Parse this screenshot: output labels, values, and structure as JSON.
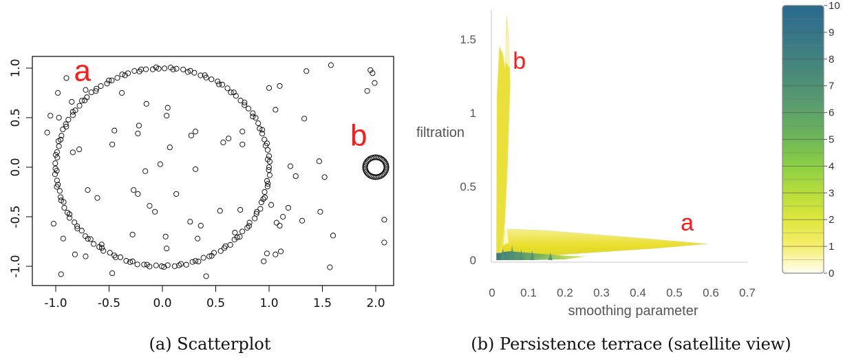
{
  "chart_data": [
    {
      "type": "scatter",
      "caption": "(a) Scatterplot",
      "xlim": [
        -1.2,
        2.2
      ],
      "ylim": [
        -1.15,
        1.1
      ],
      "x_ticks": [
        -1.0,
        -0.5,
        0.0,
        0.5,
        1.0,
        1.5,
        2.0
      ],
      "x_tick_labels": [
        "-1.0",
        "-0.5",
        "0.0",
        "0.5",
        "1.0",
        "1.5",
        "2.0"
      ],
      "y_ticks": [
        -1.0,
        -0.5,
        0.0,
        0.5,
        1.0
      ],
      "y_tick_labels": [
        "-1.0",
        "-0.5",
        "0.0",
        "0.5",
        "1.0"
      ],
      "annotations": [
        {
          "text": "a",
          "x": -0.75,
          "y": 0.87
        },
        {
          "text": "b",
          "x": 1.84,
          "y": 0.22
        }
      ],
      "structure": {
        "large_circle": {
          "center": [
            0,
            0
          ],
          "radius": 1.0
        },
        "small_circle": {
          "center": [
            2.0,
            0.0
          ],
          "radius": 0.1
        }
      },
      "points": [
        [
          -1.08,
          0.35
        ],
        [
          -1.05,
          0.52
        ],
        [
          -0.98,
          0.75
        ],
        [
          -0.9,
          0.9
        ],
        [
          -0.85,
          0.66
        ],
        [
          -0.78,
          0.18
        ],
        [
          -0.84,
          0.15
        ],
        [
          -0.72,
          0.78
        ],
        [
          -0.47,
          0.23
        ],
        [
          -0.45,
          0.37
        ],
        [
          -0.38,
          0.75
        ],
        [
          -0.15,
          0.64
        ],
        [
          -0.22,
          0.42
        ],
        [
          -0.23,
          0.34
        ],
        [
          0.05,
          0.6
        ],
        [
          0.04,
          0.52
        ],
        [
          0.07,
          0.2
        ],
        [
          0.27,
          0.32
        ],
        [
          -0.02,
          0.03
        ],
        [
          -0.16,
          -0.04
        ],
        [
          0.31,
          -0.02
        ],
        [
          -0.27,
          -0.23
        ],
        [
          -0.23,
          -0.27
        ],
        [
          0.13,
          -0.27
        ],
        [
          -0.12,
          -0.39
        ],
        [
          -0.07,
          -0.45
        ],
        [
          -0.7,
          -0.23
        ],
        [
          -0.61,
          -0.31
        ],
        [
          -0.57,
          -0.78
        ],
        [
          -0.72,
          -0.9
        ],
        [
          -0.82,
          -0.88
        ],
        [
          -0.93,
          -0.72
        ],
        [
          -1.02,
          -0.57
        ],
        [
          -0.95,
          -1.08
        ],
        [
          -0.47,
          -1.07
        ],
        [
          -0.28,
          -0.68
        ],
        [
          0.26,
          -0.55
        ],
        [
          0.36,
          -0.59
        ],
        [
          0.03,
          -0.7
        ],
        [
          0.04,
          -0.82
        ],
        [
          0.33,
          -0.72
        ],
        [
          0.41,
          -1.1
        ],
        [
          0.54,
          -0.44
        ],
        [
          0.68,
          -0.66
        ],
        [
          0.73,
          -0.43
        ],
        [
          0.75,
          0.36
        ],
        [
          0.57,
          0.25
        ],
        [
          0.62,
          0.29
        ],
        [
          0.75,
          0.23
        ],
        [
          1.0,
          0.8
        ],
        [
          1.1,
          0.82
        ],
        [
          1.06,
          0.58
        ],
        [
          1.2,
          0.01
        ],
        [
          1.25,
          -0.09
        ],
        [
          1.02,
          -0.38
        ],
        [
          1.18,
          -0.41
        ],
        [
          1.13,
          -0.5
        ],
        [
          1.07,
          -0.56
        ],
        [
          1.1,
          -0.59
        ],
        [
          0.98,
          -0.87
        ],
        [
          0.95,
          -0.95
        ],
        [
          1.06,
          -0.88
        ],
        [
          1.11,
          -0.85
        ],
        [
          1.35,
          0.97
        ],
        [
          1.33,
          0.49
        ],
        [
          1.47,
          0.06
        ],
        [
          1.52,
          -0.1
        ],
        [
          1.31,
          -0.54
        ],
        [
          1.48,
          -0.45
        ],
        [
          1.57,
          -1.01
        ],
        [
          1.6,
          -0.69
        ],
        [
          1.58,
          1.03
        ],
        [
          1.92,
          0.77
        ],
        [
          1.95,
          0.98
        ],
        [
          1.97,
          0.95
        ],
        [
          1.99,
          0.85
        ],
        [
          2.08,
          -0.53
        ],
        [
          2.08,
          -0.76
        ],
        [
          -0.97,
          0.5
        ],
        [
          0.31,
          0.36
        ]
      ]
    },
    {
      "type": "area",
      "caption": "(b) Persistence terrace (satellite view)",
      "xlabel": "smoothing parameter",
      "ylabel": "filtration",
      "xlim": [
        0,
        0.72
      ],
      "ylim": [
        0,
        1.7
      ],
      "x_ticks": [
        0,
        0.1,
        0.2,
        0.3,
        0.4,
        0.5,
        0.6,
        0.7
      ],
      "x_tick_labels": [
        "0",
        "0.1",
        "0.2",
        "0.3",
        "0.4",
        "0.5",
        "0.6",
        "0.7"
      ],
      "y_ticks": [
        0,
        0.5,
        1,
        1.5
      ],
      "y_tick_labels": [
        "0",
        "0.5",
        "1",
        "1.5"
      ],
      "annotations": [
        {
          "text": "a",
          "x": 0.535,
          "y": 0.2
        },
        {
          "text": "b",
          "x": 0.075,
          "y": 1.3
        }
      ],
      "colorbar": {
        "min": 0,
        "max": 10,
        "ticks": [
          "0",
          "1",
          "2",
          "3",
          "4",
          "5",
          "6",
          "7",
          "8",
          "9",
          "10"
        ],
        "colors": [
          "#fffff4",
          "#f6ee6e",
          "#dde73c",
          "#b8dd3b",
          "#8ccf44",
          "#6fb857",
          "#5ea26a",
          "#4f9175",
          "#42837f",
          "#357589",
          "#2a6a8c"
        ]
      },
      "regions": [
        {
          "label": "a",
          "x_range": [
            0.02,
            0.59
          ],
          "y_peak": 0.21
        },
        {
          "label": "b",
          "x_range": [
            0.01,
            0.06
          ],
          "y_peak": 1.66
        }
      ]
    }
  ]
}
